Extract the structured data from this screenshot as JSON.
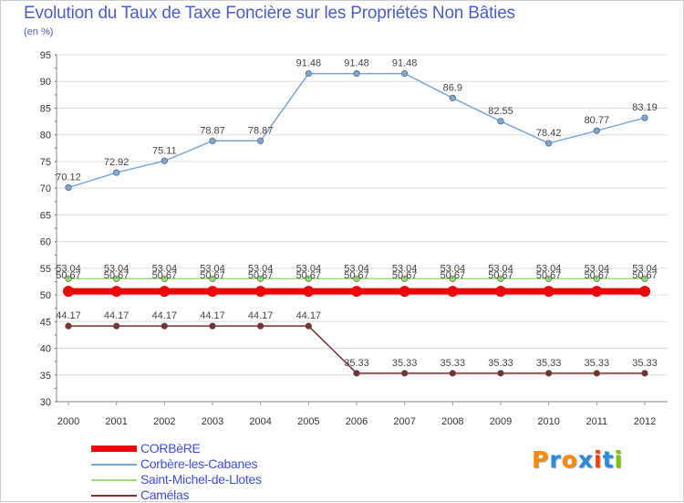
{
  "chart_data": {
    "type": "line",
    "title": "Evolution du Taux de Taxe Foncière sur les Propriétés Non Bâties",
    "ylabel": "(en %)",
    "xlabel": "",
    "x": [
      "2000",
      "2001",
      "2002",
      "2003",
      "2004",
      "2005",
      "2006",
      "2007",
      "2008",
      "2009",
      "2010",
      "2011",
      "2012"
    ],
    "ylim": [
      30,
      95
    ],
    "yticks": [
      30,
      35,
      40,
      45,
      50,
      55,
      60,
      65,
      70,
      75,
      80,
      85,
      90,
      95
    ],
    "grid": "horizontal",
    "legend_position": "bottom-left",
    "series": [
      {
        "name": "CORBèRE",
        "color": "#e8070b",
        "values": [
          50.67,
          50.67,
          50.67,
          50.67,
          50.67,
          50.67,
          50.67,
          50.67,
          50.67,
          50.67,
          50.67,
          50.67,
          50.67
        ],
        "labels": [
          "50.67",
          "50.67",
          "50.67",
          "50.67",
          "50.67",
          "50.67",
          "50.67",
          "50.67",
          "50.67",
          "50.67",
          "50.67",
          "50.67",
          "50.67"
        ]
      },
      {
        "name": "Corbère-les-Cabanes",
        "color": "#7aa6d8",
        "values": [
          70.12,
          72.92,
          75.11,
          78.87,
          78.87,
          91.48,
          91.48,
          91.48,
          86.9,
          82.55,
          78.42,
          80.77,
          83.19
        ],
        "labels": [
          "70.12",
          "72.92",
          "75.11",
          "78.87",
          "78.87",
          "91.48",
          "91.48",
          "91.48",
          "86.9",
          "82.55",
          "78.42",
          "80.77",
          "83.19"
        ]
      },
      {
        "name": "Saint-Michel-de-Llotes",
        "color": "#99dd77",
        "values": [
          53.04,
          53.04,
          53.04,
          53.04,
          53.04,
          53.04,
          53.04,
          53.04,
          53.04,
          53.04,
          53.04,
          53.04,
          53.04
        ],
        "labels": [
          "53.04",
          "53.04",
          "53.04",
          "53.04",
          "53.04",
          "53.04",
          "53.04",
          "53.04",
          "53.04",
          "53.04",
          "53.04",
          "53.04",
          "53.04"
        ]
      },
      {
        "name": "Camélas",
        "color": "#7a3030",
        "values": [
          44.17,
          44.17,
          44.17,
          44.17,
          44.17,
          44.17,
          35.33,
          35.33,
          35.33,
          35.33,
          35.33,
          35.33,
          35.33
        ],
        "labels": [
          "44.17",
          "44.17",
          "44.17",
          "44.17",
          "44.17",
          "44.17",
          "35.33",
          "35.33",
          "35.33",
          "35.33",
          "35.33",
          "35.33",
          "35.33"
        ]
      }
    ]
  },
  "logo": {
    "parts": [
      "P",
      "r",
      "o",
      "x",
      "i",
      "t",
      "i"
    ],
    "colors": [
      "#ff8a00",
      "#2a8bd8",
      "#ff8a00",
      "#2a8bd8",
      "#ff3d00",
      "#2a8bd8",
      "#7cc400"
    ]
  }
}
